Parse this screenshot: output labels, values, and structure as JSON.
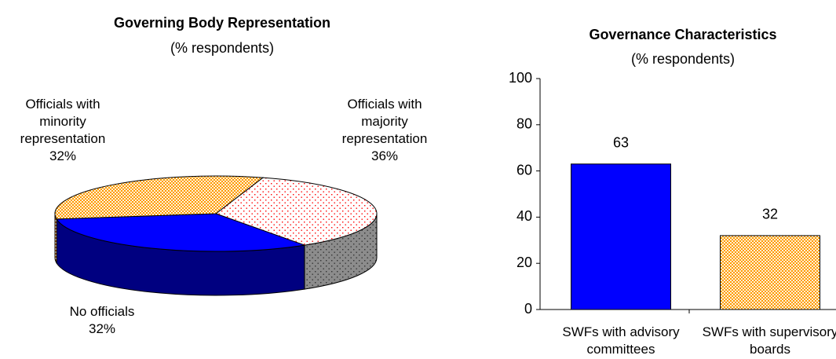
{
  "chart_data": [
    {
      "type": "pie3d",
      "title": "Governing Body Representation",
      "subtitle": "(% respondents)",
      "categories": [
        "Officials with majority representation",
        "No officials",
        "Officials with minority representation"
      ],
      "values": [
        36,
        32,
        32
      ],
      "value_labels": [
        "36%",
        "32%",
        "32%"
      ],
      "colors": [
        "#ff0000",
        "#0000ff",
        "#ff9900"
      ],
      "patterns": [
        "dots",
        "solid",
        "checker"
      ]
    },
    {
      "type": "bar",
      "title": "Governance Characteristics",
      "subtitle": "(% respondents)",
      "categories": [
        "SWFs with advisory committees",
        "SWFs with supervisory boards"
      ],
      "values": [
        63,
        32
      ],
      "colors": [
        "#0000ff",
        "#ff9900"
      ],
      "patterns": [
        "solid",
        "checker"
      ],
      "ylim": [
        0,
        100
      ],
      "yticks": [
        0,
        20,
        40,
        60,
        80,
        100
      ]
    }
  ]
}
